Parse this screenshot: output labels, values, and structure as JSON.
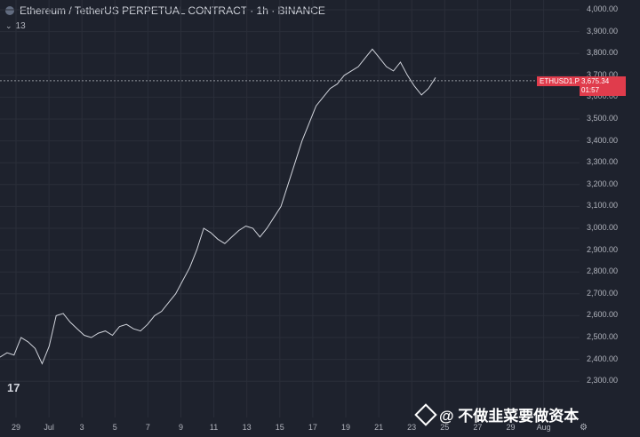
{
  "header": {
    "title": "Ethereum / TetherUS PERPETUAL CONTRACT · 1h · BINANCE",
    "indicator_count": "13"
  },
  "price_label": {
    "symbol": "ETHUSD1.P",
    "price": "3,675.34",
    "countdown": "01:57"
  },
  "watermark": {
    "text": "@ 不做韭菜要做资本"
  },
  "tv_logo": "17",
  "chart_data": {
    "type": "line",
    "y_axis_ticks": [
      "4,000.00",
      "3,900.00",
      "3,800.00",
      "3,700.00",
      "3,600.00",
      "3,500.00",
      "3,400.00",
      "3,300.00",
      "3,200.00",
      "3,100.00",
      "3,000.00",
      "2,900.00",
      "2,800.00",
      "2,700.00",
      "2,600.00",
      "2,500.00",
      "2,400.00",
      "2,300.00"
    ],
    "x_axis_ticks": [
      "29",
      "Jul",
      "3",
      "5",
      "7",
      "9",
      "11",
      "13",
      "15",
      "17",
      "19",
      "21",
      "23",
      "25",
      "27",
      "29",
      "Aug"
    ],
    "ylim": [
      2260,
      4020
    ],
    "series": [
      {
        "values": [
          2410,
          2430,
          2420,
          2500,
          2480,
          2450,
          2380,
          2460,
          2600,
          2610,
          2570,
          2540,
          2510,
          2500,
          2520,
          2530,
          2510,
          2550,
          2560,
          2540,
          2530,
          2560,
          2600,
          2620,
          2660,
          2700,
          2760,
          2820,
          2900,
          3000,
          2980,
          2950,
          2930,
          2960,
          2990,
          3010,
          3000,
          2960,
          3000,
          3050,
          3100,
          3200,
          3300,
          3400,
          3480,
          3560,
          3600,
          3640,
          3660,
          3700,
          3720,
          3740,
          3780,
          3820,
          3780,
          3740,
          3720,
          3760,
          3700,
          3650,
          3610,
          3640,
          3690
        ]
      }
    ]
  }
}
